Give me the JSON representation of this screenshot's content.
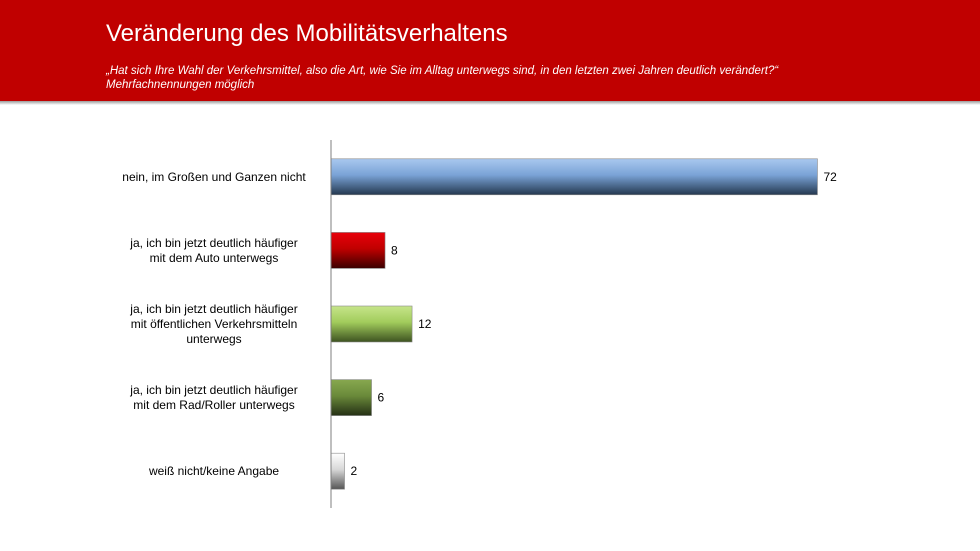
{
  "header": {
    "title": "Veränderung des Mobilitätsverhaltens",
    "question": "„Hat sich Ihre Wahl der Verkehrsmittel,  also die Art, wie Sie im Alltag unterwegs sind, in den letzten zwei Jahren deutlich verändert?“",
    "note": "Mehrfachnennungen  möglich"
  },
  "colors": {
    "header_bg": "#c00000",
    "bars": [
      [
        "#a9c8ef",
        "#7aa3d6",
        "#24384f"
      ],
      [
        "#e8000a",
        "#c00000",
        "#3a0000"
      ],
      [
        "#c6e58a",
        "#a2cc5c",
        "#3d5220"
      ],
      [
        "#87a84f",
        "#6a8a3a",
        "#243014"
      ],
      [
        "#ffffff",
        "#d8d8d8",
        "#555555"
      ]
    ]
  },
  "chart_data": {
    "type": "bar",
    "orientation": "horizontal",
    "categories": [
      [
        "nein, im Großen und Ganzen nicht"
      ],
      [
        "ja, ich bin jetzt deutlich häufiger",
        "mit dem Auto unterwegs"
      ],
      [
        "ja, ich bin jetzt deutlich häufiger",
        "mit öffentlichen Verkehrsmitteln",
        "unterwegs"
      ],
      [
        "ja, ich bin jetzt deutlich häufiger",
        "mit dem Rad/Roller unterwegs"
      ],
      [
        "weiß nicht/keine Angabe"
      ]
    ],
    "values": [
      72,
      8,
      12,
      6,
      2
    ],
    "value_labels": [
      "72",
      "8",
      "12",
      "6",
      "2"
    ],
    "xlim": [
      0,
      78
    ],
    "grid": false,
    "legend": "none"
  }
}
